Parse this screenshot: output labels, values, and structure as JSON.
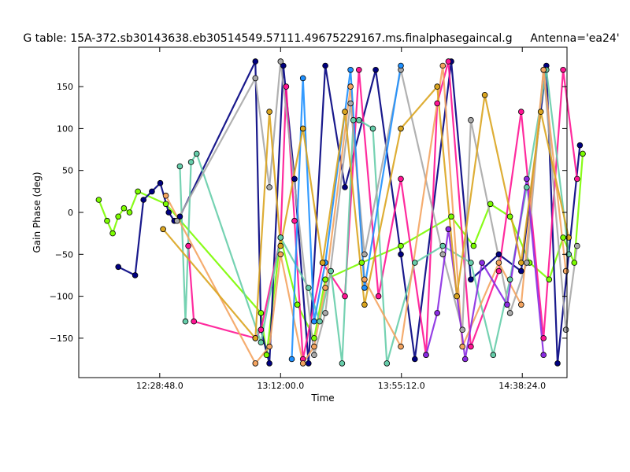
{
  "chart_data": {
    "type": "line",
    "title": "G table: 15A-372.sb30143638.eb30514549.57111.49675229167.ms.finalphasegaincal.g",
    "antenna_label": "Antenna='ea24'",
    "xlabel": "Time",
    "ylabel": "Gain Phase (deg)",
    "xticks": [
      "12:28:48.0",
      "13:12:00.0",
      "13:55:12.0",
      "14:38:24.0"
    ],
    "yticks": [
      -150,
      -100,
      -50,
      0,
      50,
      100,
      150
    ],
    "ylim": [
      -197,
      197
    ],
    "grid": false,
    "series": [
      {
        "color": "#7cfc00",
        "x": [
          "12:07:00",
          "12:10:00",
          "12:12:00",
          "12:14:00",
          "12:16:00",
          "12:18:00",
          "12:21:00",
          "12:31:00",
          "13:05:00",
          "13:07:00",
          "13:12:00",
          "13:18:00",
          "13:24:00",
          "13:28:00",
          "13:41:00",
          "13:55:00",
          "14:13:00",
          "14:21:00",
          "14:27:00",
          "14:34:00",
          "14:41:00",
          "14:48:00",
          "14:53:00",
          "14:57:00",
          "15:00:00"
        ],
        "y": [
          15,
          -10,
          -25,
          -5,
          5,
          0,
          25,
          10,
          -120,
          -170,
          -30,
          -110,
          -150,
          -80,
          -60,
          -40,
          -5,
          -40,
          10,
          -5,
          -60,
          -80,
          -30,
          -60,
          70
        ]
      },
      {
        "color": "#000080",
        "x": [
          "12:14:00",
          "12:20:00",
          "12:23:00",
          "12:26:00",
          "12:29:00",
          "12:32:00",
          "12:34:00",
          "12:36:00",
          "13:03:00",
          "13:05:00",
          "13:08:00",
          "13:13:00",
          "13:17:00",
          "13:22:00",
          "13:28:00",
          "13:35:00",
          "13:46:00",
          "13:55:00",
          "14:00:00",
          "14:13:00",
          "14:20:00",
          "14:30:00",
          "14:38:00",
          "14:47:00",
          "14:51:00",
          "14:59:00"
        ],
        "y": [
          -65,
          -75,
          15,
          25,
          35,
          0,
          -10,
          -5,
          180,
          -140,
          -180,
          175,
          40,
          -180,
          175,
          30,
          170,
          -50,
          -175,
          180,
          -80,
          -50,
          -70,
          175,
          -180,
          80
        ]
      },
      {
        "color": "#ff1493",
        "x": [
          "12:39:00",
          "12:41:00",
          "13:03:00",
          "13:05:00",
          "13:12:00",
          "13:14:00",
          "13:17:00",
          "13:20:00",
          "13:27:00",
          "13:35:00",
          "13:40:00",
          "13:47:00",
          "13:55:00",
          "14:04:00",
          "14:08:00",
          "14:12:00",
          "14:20:00",
          "14:30:00",
          "14:38:00",
          "14:46:00",
          "14:53:00",
          "14:58:00"
        ],
        "y": [
          -40,
          -130,
          -150,
          -140,
          -30,
          150,
          -10,
          -175,
          -60,
          -100,
          170,
          -100,
          40,
          -170,
          130,
          180,
          -160,
          -70,
          120,
          -150,
          170,
          40
        ]
      },
      {
        "color": "#66cdaa",
        "x": [
          "12:36:00",
          "12:38:00",
          "12:40:00",
          "12:42:00",
          "13:05:00",
          "13:12:00",
          "13:22:00",
          "13:26:00",
          "13:30:00",
          "13:34:00",
          "13:38:00",
          "13:40:00",
          "13:45:00",
          "13:50:00",
          "14:00:00",
          "14:10:00",
          "14:20:00",
          "14:28:00",
          "14:34:00",
          "14:40:00",
          "14:47:00",
          "14:55:00"
        ],
        "y": [
          55,
          -130,
          60,
          70,
          -155,
          -30,
          -90,
          -130,
          -70,
          -180,
          110,
          110,
          100,
          -180,
          -60,
          -40,
          -60,
          -170,
          -80,
          30,
          170,
          -50
        ]
      },
      {
        "color": "#a9a9a9",
        "x": [
          "12:35:00",
          "13:03:00",
          "13:08:00",
          "13:12:00",
          "13:24:00",
          "13:28:00",
          "13:37:00",
          "13:42:00",
          "13:55:00",
          "14:10:00",
          "14:17:00",
          "14:20:00",
          "14:34:00",
          "14:40:00",
          "14:46:00",
          "14:54:00",
          "14:58:00"
        ],
        "y": [
          -10,
          160,
          30,
          180,
          -170,
          -120,
          130,
          -50,
          170,
          -50,
          -140,
          110,
          -120,
          -60,
          170,
          -140,
          -40
        ]
      },
      {
        "color": "#f4a460",
        "x": [
          "12:31:00",
          "13:03:00",
          "13:08:00",
          "13:12:00",
          "13:20:00",
          "13:24:00",
          "13:28:00",
          "13:37:00",
          "13:42:00",
          "13:55:00",
          "14:10:00",
          "14:17:00",
          "14:30:00",
          "14:38:00",
          "14:46:00",
          "14:54:00"
        ],
        "y": [
          20,
          -180,
          -160,
          -50,
          -180,
          -160,
          -90,
          150,
          -80,
          -160,
          175,
          -160,
          -60,
          -110,
          170,
          -70
        ]
      },
      {
        "color": "#1e90ff",
        "x": [
          "13:16:00",
          "13:20:00",
          "13:24:00",
          "13:28:00",
          "13:37:00",
          "13:42:00",
          "13:55:00"
        ],
        "y": [
          -175,
          160,
          -130,
          -60,
          170,
          -90,
          175
        ]
      },
      {
        "color": "#8a2be2",
        "x": [
          "14:04:00",
          "14:08:00",
          "14:12:00",
          "14:18:00",
          "14:24:00",
          "14:33:00",
          "14:40:00",
          "14:46:00"
        ],
        "y": [
          -170,
          -120,
          -20,
          -175,
          -60,
          -110,
          40,
          -170
        ]
      },
      {
        "color": "#daa520",
        "x": [
          "12:30:00",
          "13:03:00",
          "13:08:00",
          "13:12:00",
          "13:20:00",
          "13:27:00",
          "13:35:00",
          "13:42:00",
          "13:55:00",
          "14:08:00",
          "14:15:00",
          "14:25:00",
          "14:38:00",
          "14:45:00",
          "14:55:00"
        ],
        "y": [
          -20,
          -150,
          120,
          -40,
          100,
          -60,
          120,
          -110,
          100,
          150,
          -100,
          140,
          -60,
          120,
          -30
        ]
      }
    ]
  }
}
